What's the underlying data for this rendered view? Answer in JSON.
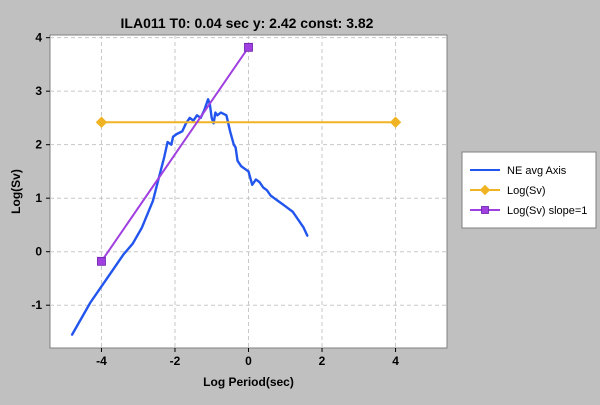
{
  "chart_data": {
    "type": "line",
    "title": "ILA011 T0: 0.04 sec  y: 2.42 const: 3.82",
    "xlabel": "Log Period(sec)",
    "ylabel": "Log(Sv)",
    "xlim": [
      -5.4,
      5.4
    ],
    "ylim": [
      -1.8,
      4.05
    ],
    "x_ticks": [
      -4,
      -2,
      0,
      2,
      4
    ],
    "x_tick_labels": [
      "-4",
      "-2",
      "0",
      "2",
      "4"
    ],
    "y_ticks": [
      -1,
      0,
      1,
      2,
      3,
      4
    ],
    "y_tick_labels": [
      "-1",
      "0",
      "1",
      "2",
      "3",
      "4"
    ],
    "grid": true,
    "legend_position": "right",
    "series": [
      {
        "name": "NE avg Axis",
        "color": "#2255ee",
        "marker": "none",
        "x": [
          -4.8,
          -4.3,
          -3.8,
          -3.4,
          -3.15,
          -2.9,
          -2.6,
          -2.45,
          -2.3,
          -2.2,
          -2.1,
          -2.05,
          -1.95,
          -1.8,
          -1.7,
          -1.6,
          -1.5,
          -1.4,
          -1.3,
          -1.2,
          -1.1,
          -1.05,
          -1.0,
          -0.95,
          -0.9,
          -0.85,
          -0.75,
          -0.6,
          -0.5,
          -0.4,
          -0.35,
          -0.3,
          -0.25,
          -0.2,
          -0.1,
          0.0,
          0.1,
          0.2,
          0.3,
          0.4,
          0.5,
          0.6,
          0.7,
          0.8,
          0.9,
          1.0,
          1.1,
          1.2,
          1.3,
          1.4,
          1.5,
          1.6
        ],
        "y": [
          -1.55,
          -0.95,
          -0.45,
          -0.05,
          0.15,
          0.45,
          0.95,
          1.35,
          1.75,
          2.05,
          2.0,
          2.15,
          2.2,
          2.25,
          2.4,
          2.5,
          2.45,
          2.55,
          2.5,
          2.65,
          2.85,
          2.75,
          2.5,
          2.4,
          2.6,
          2.55,
          2.6,
          2.55,
          2.25,
          2.0,
          1.95,
          1.7,
          1.65,
          1.6,
          1.55,
          1.5,
          1.25,
          1.35,
          1.3,
          1.2,
          1.15,
          1.05,
          1.0,
          0.95,
          0.9,
          0.85,
          0.8,
          0.75,
          0.65,
          0.55,
          0.45,
          0.3
        ]
      },
      {
        "name": "Log(Sv)",
        "color": "#f0b323",
        "marker": "diamond",
        "x": [
          -4,
          4
        ],
        "y": [
          2.42,
          2.42
        ]
      },
      {
        "name": "Log(Sv) slope=1",
        "color": "#a040e0",
        "marker": "square",
        "x": [
          -4,
          0
        ],
        "y": [
          -0.18,
          3.82
        ]
      }
    ]
  }
}
